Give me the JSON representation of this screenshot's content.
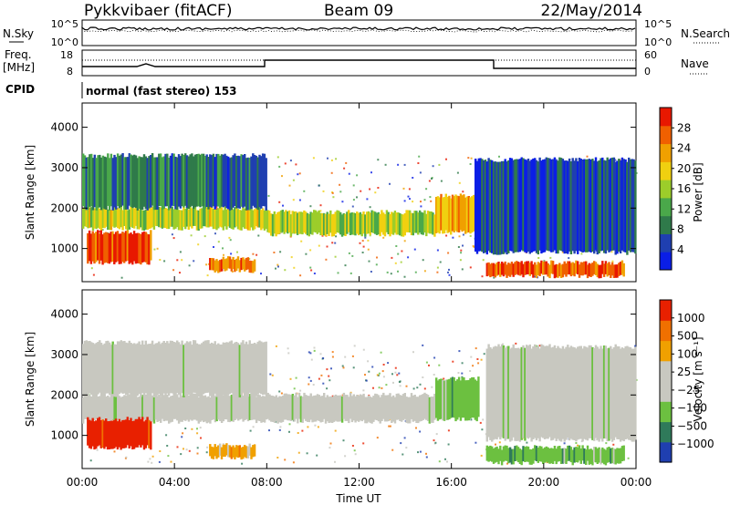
{
  "header": {
    "station": "Pykkvibaer (fitACF)",
    "beam": "Beam 09",
    "date": "22/May/2014"
  },
  "panel_nsky": {
    "left_label": "N.Sky",
    "left_ticks": [
      "10^5",
      "10^0"
    ],
    "right_ticks": [
      "10^5",
      "10^0"
    ],
    "right_label": "N.Search"
  },
  "panel_freq": {
    "left_label_1": "Freq.",
    "left_label_2": "[MHz]",
    "left_ticks": [
      "18",
      "8"
    ],
    "right_ticks": [
      "60",
      "0"
    ],
    "right_label": "Nave",
    "cpid_label": "CPID",
    "cpid_text": "normal (fast stereo) 153"
  },
  "chart_data": [
    {
      "type": "heatmap",
      "name": "power",
      "ylabel": "Slant Range [km]",
      "ylim": [
        180,
        4600
      ],
      "yticks": [
        "1000",
        "2000",
        "3000",
        "4000"
      ],
      "xlabel": "Time UT",
      "xlim": [
        0,
        24
      ],
      "xticks": [
        "00:00",
        "04:00",
        "08:00",
        "12:00",
        "16:00",
        "20:00",
        "00:00"
      ],
      "colorbar_label": "Power [dB]",
      "colorbar_ticks": [
        "28",
        "24",
        "20",
        "16",
        "12",
        "8",
        "4"
      ],
      "colors": [
        "#0a1ee6",
        "#1f3fb0",
        "#2f7a4a",
        "#4aa84a",
        "#9ccd2a",
        "#f0d010",
        "#f0a000",
        "#f06000",
        "#e81800"
      ],
      "bands": [
        {
          "t0": 0.0,
          "t1": 8.0,
          "r0": 1500,
          "r1": 2000,
          "level": 0.55
        },
        {
          "t0": 8.0,
          "t1": 15.3,
          "r0": 1350,
          "r1": 1900,
          "level": 0.5
        },
        {
          "t0": 15.3,
          "t1": 17.2,
          "r0": 1400,
          "r1": 2300,
          "level": 0.7
        },
        {
          "t0": 0.2,
          "t1": 3.0,
          "r0": 650,
          "r1": 1400,
          "level": 0.9
        },
        {
          "t0": 5.5,
          "t1": 7.5,
          "r0": 450,
          "r1": 750,
          "level": 0.8
        },
        {
          "t0": 17.5,
          "t1": 23.5,
          "r0": 320,
          "r1": 650,
          "level": 0.85
        },
        {
          "t0": 0.0,
          "t1": 8.0,
          "r0": 2000,
          "r1": 3300,
          "level": 0.25
        },
        {
          "t0": 17.0,
          "t1": 24.0,
          "r0": 900,
          "r1": 3200,
          "level": 0.15
        }
      ]
    },
    {
      "type": "heatmap",
      "name": "velocity",
      "ylabel": "Slant Range [km]",
      "ylim": [
        180,
        4600
      ],
      "yticks": [
        "1000",
        "2000",
        "3000",
        "4000"
      ],
      "xlabel": "Time UT",
      "xlim": [
        0,
        24
      ],
      "xticks": [
        "00:00",
        "04:00",
        "08:00",
        "12:00",
        "16:00",
        "20:00",
        "00:00"
      ],
      "colorbar_label": "Velocity [m s⁻¹]",
      "colorbar_ticks": [
        "1000",
        "500",
        "100",
        "25",
        "−25",
        "−100",
        "−500",
        "−1000"
      ],
      "colors": [
        "#1f3fb0",
        "#2f7a5a",
        "#6cc040",
        "#c8c8c0",
        "#c8c8c0",
        "#f0a000",
        "#f07000",
        "#e82000"
      ],
      "bands": [
        {
          "t0": 0.0,
          "t1": 15.3,
          "r0": 1350,
          "r1": 2000,
          "level": "gray"
        },
        {
          "t0": 0.0,
          "t1": 8.0,
          "r0": 2000,
          "r1": 3300,
          "level": "gray"
        },
        {
          "t0": 0.2,
          "t1": 3.0,
          "r0": 700,
          "r1": 1400,
          "level": "red"
        },
        {
          "t0": 5.5,
          "t1": 7.5,
          "r0": 450,
          "r1": 750,
          "level": "orange"
        },
        {
          "t0": 15.3,
          "t1": 17.2,
          "r0": 1400,
          "r1": 2400,
          "level": "green"
        },
        {
          "t0": 17.5,
          "t1": 23.5,
          "r0": 320,
          "r1": 700,
          "level": "green"
        },
        {
          "t0": 17.5,
          "t1": 24.0,
          "r0": 900,
          "r1": 3200,
          "level": "gray"
        }
      ]
    }
  ]
}
